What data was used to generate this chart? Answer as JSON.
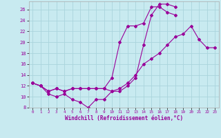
{
  "xlabel": "Windchill (Refroidissement éolien,°C)",
  "background_color": "#c8eaf0",
  "grid_color": "#aad4dc",
  "line_color": "#990099",
  "xlim": [
    -0.5,
    23.5
  ],
  "ylim": [
    8,
    27.5
  ],
  "xticks": [
    0,
    1,
    2,
    3,
    4,
    5,
    6,
    7,
    8,
    9,
    10,
    11,
    12,
    13,
    14,
    15,
    16,
    17,
    18,
    19,
    20,
    21,
    22,
    23
  ],
  "yticks": [
    8,
    10,
    12,
    14,
    16,
    18,
    20,
    22,
    24,
    26
  ],
  "line1_x": [
    0,
    1,
    2,
    3,
    4,
    5,
    6,
    7,
    8,
    9,
    10,
    11,
    12,
    13,
    14,
    15,
    16,
    17,
    18
  ],
  "line1_y": [
    12.5,
    12.0,
    10.5,
    10.0,
    10.5,
    9.5,
    9.0,
    8.0,
    9.5,
    9.5,
    11.0,
    11.0,
    12.0,
    13.5,
    19.5,
    25.0,
    27.0,
    27.0,
    26.5
  ],
  "line2_x": [
    0,
    1,
    2,
    3,
    4,
    5,
    6,
    7,
    8,
    9,
    10,
    11,
    12,
    13,
    14,
    15,
    16,
    17,
    18
  ],
  "line2_y": [
    12.5,
    12.0,
    11.0,
    11.5,
    11.0,
    11.5,
    11.5,
    11.5,
    11.5,
    11.5,
    13.5,
    20.0,
    23.0,
    23.0,
    23.5,
    26.5,
    26.5,
    25.5,
    25.0
  ],
  "line3_x": [
    0,
    1,
    2,
    3,
    4,
    5,
    6,
    7,
    8,
    9,
    10,
    11,
    12,
    13,
    14,
    15,
    16,
    17,
    18,
    19,
    20,
    21,
    22,
    23
  ],
  "line3_y": [
    12.5,
    12.0,
    11.0,
    11.5,
    11.0,
    11.5,
    11.5,
    11.5,
    11.5,
    11.5,
    11.0,
    11.5,
    12.5,
    14.0,
    16.0,
    17.0,
    18.0,
    19.5,
    21.0,
    21.5,
    23.0,
    20.5,
    19.0,
    19.0
  ]
}
